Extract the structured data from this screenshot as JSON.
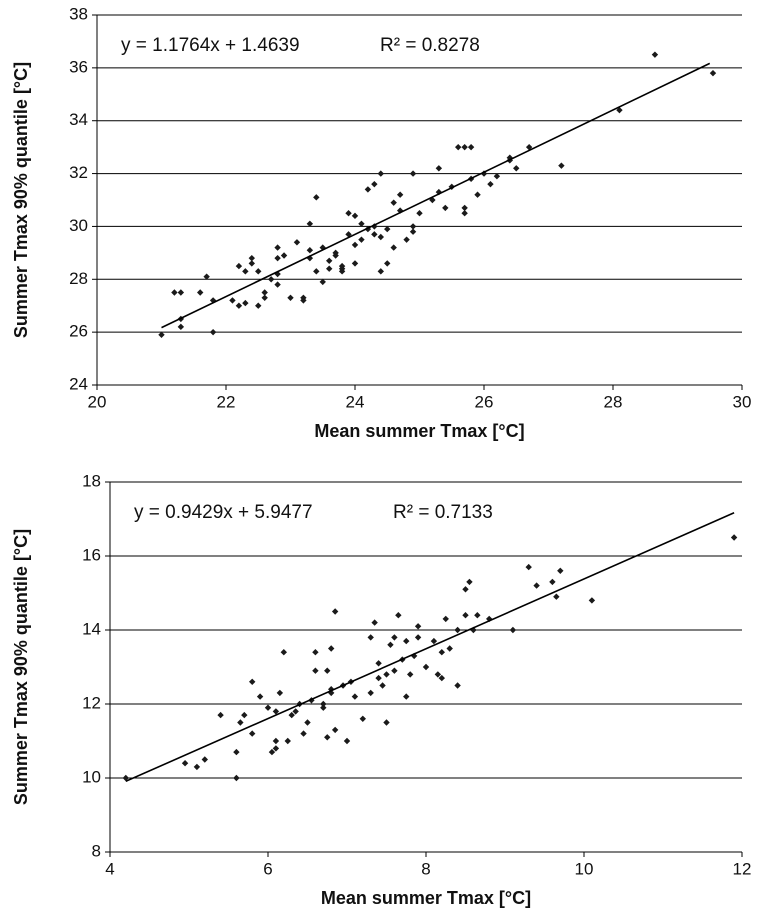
{
  "chart_data": [
    {
      "type": "scatter",
      "x_label": "Mean summer Tmax [°C]",
      "y_label": "Summer Tmax 90% quantile [°C]",
      "equation": "y = 1.1764x + 1.4639",
      "r_squared": "R² = 0.8278",
      "xlim": [
        20,
        30
      ],
      "xticks": [
        20,
        22,
        24,
        26,
        28,
        30
      ],
      "ylim": [
        24,
        38
      ],
      "yticks": [
        24,
        26,
        28,
        30,
        32,
        34,
        36,
        38
      ],
      "grid": true,
      "color": "#1a1a1a",
      "x": [
        21.0,
        21.2,
        21.3,
        21.3,
        21.3,
        21.6,
        21.7,
        21.8,
        21.8,
        22.1,
        22.2,
        22.2,
        22.3,
        22.3,
        22.4,
        22.4,
        22.5,
        22.5,
        22.6,
        22.6,
        22.7,
        22.8,
        22.8,
        22.8,
        22.9,
        22.8,
        23.0,
        23.1,
        23.2,
        23.2,
        23.3,
        23.3,
        23.3,
        23.4,
        23.4,
        23.5,
        23.5,
        23.6,
        23.6,
        23.7,
        23.7,
        23.8,
        23.8,
        23.8,
        23.9,
        23.9,
        24.0,
        24.0,
        24.0,
        24.1,
        24.1,
        24.2,
        24.2,
        24.3,
        24.3,
        24.3,
        24.4,
        24.4,
        24.5,
        24.5,
        24.6,
        24.6,
        24.7,
        24.7,
        24.8,
        24.9,
        24.9,
        24.4,
        24.9,
        25.0,
        25.2,
        25.3,
        25.4,
        25.3,
        25.5,
        25.7,
        25.8,
        25.6,
        25.7,
        25.8,
        25.9,
        25.7,
        26.0,
        26.1,
        26.2,
        26.4,
        26.5,
        26.4,
        26.7,
        27.2,
        28.1,
        28.65,
        29.55
      ],
      "values": [
        25.9,
        27.5,
        27.5,
        26.5,
        26.2,
        27.5,
        28.1,
        27.2,
        26.0,
        27.2,
        28.5,
        27.0,
        27.1,
        28.3,
        28.6,
        28.8,
        28.3,
        27.0,
        27.3,
        27.5,
        28.0,
        28.2,
        28.8,
        29.2,
        28.9,
        27.8,
        27.3,
        29.4,
        27.3,
        27.2,
        28.8,
        29.1,
        30.1,
        31.1,
        28.3,
        27.9,
        29.2,
        28.4,
        28.7,
        28.9,
        29.0,
        28.3,
        28.4,
        28.5,
        29.7,
        30.5,
        30.4,
        29.3,
        28.6,
        29.5,
        30.1,
        29.9,
        31.4,
        29.7,
        31.6,
        30.0,
        28.3,
        29.6,
        28.6,
        29.9,
        29.2,
        30.9,
        30.6,
        31.2,
        29.5,
        29.8,
        32.0,
        32.0,
        30.0,
        30.5,
        31.0,
        31.3,
        30.7,
        32.2,
        31.5,
        30.7,
        31.8,
        33.0,
        33.0,
        33.0,
        31.2,
        30.5,
        32.0,
        31.6,
        31.9,
        32.6,
        32.2,
        32.5,
        33.0,
        32.3,
        34.4,
        36.5,
        35.8
      ],
      "trendline": {
        "x": [
          21.0,
          29.5
        ],
        "values": [
          26.17,
          36.17
        ],
        "color": "#000000"
      }
    },
    {
      "type": "scatter",
      "x_label": "Mean summer Tmax [°C]",
      "y_label": "Summer Tmax 90% quantile [°C]",
      "equation": "y = 0.9429x + 5.9477",
      "r_squared": "R² = 0.7133",
      "xlim": [
        4,
        12
      ],
      "xticks": [
        4,
        6,
        8,
        10,
        12
      ],
      "ylim": [
        8,
        18
      ],
      "yticks": [
        8,
        10,
        12,
        14,
        16,
        18
      ],
      "grid": true,
      "color": "#1a1a1a",
      "x": [
        4.2,
        4.95,
        5.1,
        5.2,
        5.4,
        5.6,
        5.6,
        5.65,
        5.7,
        5.8,
        5.8,
        5.9,
        6.0,
        6.05,
        6.1,
        6.1,
        6.1,
        6.15,
        6.2,
        6.25,
        6.3,
        6.35,
        6.4,
        6.45,
        6.5,
        6.55,
        6.6,
        6.6,
        6.7,
        6.7,
        6.75,
        6.75,
        6.8,
        6.8,
        6.8,
        6.85,
        6.85,
        6.95,
        7.0,
        7.05,
        7.1,
        7.2,
        7.3,
        7.3,
        7.35,
        7.4,
        7.4,
        7.45,
        7.5,
        7.5,
        7.55,
        7.6,
        7.6,
        7.65,
        7.7,
        7.75,
        7.75,
        7.8,
        7.85,
        7.9,
        7.9,
        8.0,
        8.1,
        8.15,
        8.2,
        8.2,
        8.25,
        8.3,
        8.4,
        8.4,
        8.5,
        8.5,
        8.55,
        8.6,
        8.65,
        8.8,
        9.1,
        9.3,
        9.4,
        9.6,
        9.65,
        9.7,
        10.1,
        11.9
      ],
      "values": [
        10.0,
        10.4,
        10.3,
        10.5,
        11.7,
        10.0,
        10.7,
        11.5,
        11.7,
        11.2,
        12.6,
        12.2,
        11.9,
        10.7,
        10.8,
        11.0,
        11.8,
        12.3,
        13.4,
        11.0,
        11.7,
        11.8,
        12.0,
        11.2,
        11.5,
        12.1,
        12.9,
        13.4,
        12.0,
        11.9,
        11.1,
        12.9,
        12.3,
        12.4,
        13.5,
        14.5,
        11.3,
        12.5,
        11.0,
        12.6,
        12.2,
        11.6,
        12.3,
        13.8,
        14.2,
        12.7,
        13.1,
        12.5,
        11.5,
        12.8,
        13.6,
        13.8,
        12.9,
        14.4,
        13.2,
        12.2,
        13.7,
        12.8,
        13.3,
        14.1,
        13.8,
        13.0,
        13.7,
        12.8,
        13.4,
        12.7,
        14.3,
        13.5,
        12.5,
        14.0,
        14.4,
        15.1,
        15.3,
        14.0,
        14.4,
        14.3,
        14.0,
        15.7,
        15.2,
        15.3,
        14.9,
        15.6,
        14.8,
        16.5
      ],
      "trendline": {
        "x": [
          4.2,
          11.9
        ],
        "values": [
          9.91,
          17.17
        ],
        "color": "#000000"
      }
    }
  ]
}
